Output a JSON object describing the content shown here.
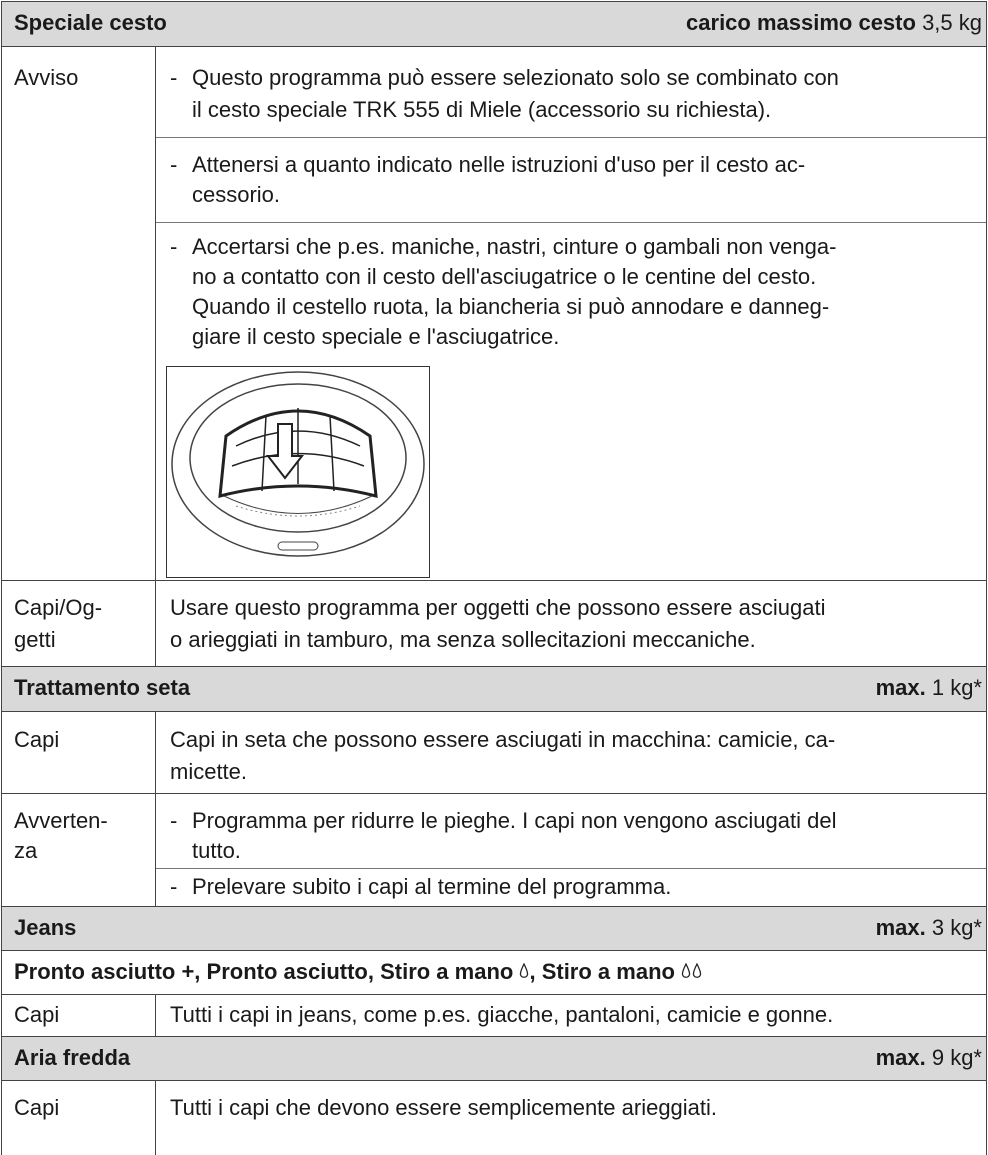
{
  "sections": [
    {
      "title": "Speciale cesto",
      "load_label": "carico massimo cesto",
      "load_value": "3,5 kg",
      "rows": [
        {
          "label": [
            "Avviso"
          ],
          "items": [
            [
              "Questo programma può essere selezionato solo se combinato con",
              "il cesto speciale TRK 555 di Miele (accessorio su richiesta)."
            ],
            [
              "Attenersi a quanto indicato nelle istruzioni d'uso per il cesto ac-",
              "cessorio."
            ],
            [
              "Accertarsi che p.es. maniche, nastri, cinture o gambali non venga-",
              "no a contatto con il cesto dell'asciugatrice o le centine del cesto.",
              "Quando il cestello ruota, la biancheria si può annodare e danneg-",
              "giare il cesto speciale e l'asciugatrice."
            ]
          ]
        },
        {
          "label": [
            "Capi/Og-",
            "getti"
          ],
          "lines": [
            "Usare questo programma per oggetti che possono essere asciugati",
            "o arieggiati in tamburo, ma senza sollecitazioni meccaniche."
          ]
        }
      ]
    },
    {
      "title": "Trattamento seta",
      "load_label": "max.",
      "load_value": "1 kg*",
      "rows": [
        {
          "label": [
            "Capi"
          ],
          "lines": [
            "Capi in seta che possono essere asciugati in macchina: camicie, ca-",
            "micette."
          ]
        },
        {
          "label": [
            "Avverten-",
            "za"
          ],
          "items": [
            [
              "Programma per ridurre le pieghe. I capi non vengono asciugati del",
              "tutto."
            ],
            [
              "Prelevare subito i capi al termine del programma."
            ]
          ]
        }
      ]
    },
    {
      "title": "Jeans",
      "load_label": "max.",
      "load_value": "3 kg*",
      "programs": [
        "Pronto asciutto +, Pronto asciutto, Stiro a mano",
        ", Stiro a mano"
      ],
      "rows": [
        {
          "label": [
            "Capi"
          ],
          "lines": [
            "Tutti i capi in jeans, come p.es. giacche, pantaloni, camicie e gonne."
          ]
        }
      ]
    },
    {
      "title": "Aria fredda",
      "load_label": "max.",
      "load_value": "9 kg*",
      "rows": [
        {
          "label": [
            "Capi"
          ],
          "lines": [
            "Tutti i capi che devono essere semplicemente arieggiati."
          ]
        }
      ]
    }
  ]
}
